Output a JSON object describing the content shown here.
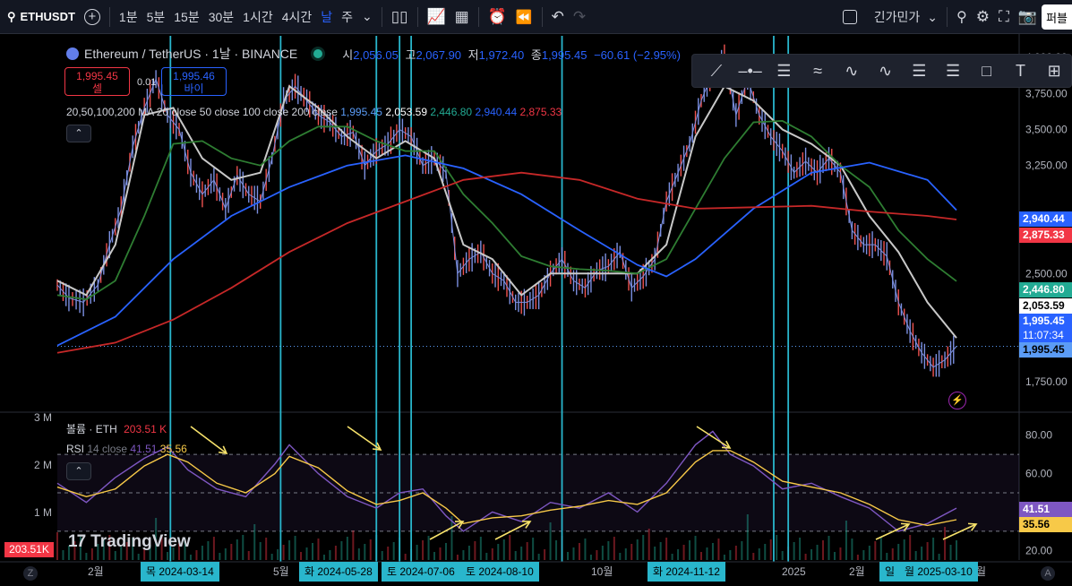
{
  "toolbar": {
    "symbol": "ETHUSDT",
    "intervals": [
      "1분",
      "5분",
      "15분",
      "30분",
      "1시간",
      "4시간",
      "날",
      "주"
    ],
    "active_interval": "날",
    "chart_type": "긴가민가"
  },
  "header": {
    "title": "Ethereum / TetherUS · 1날 · BINANCE",
    "ohlc": {
      "o_label": "시",
      "o": "2,056.05",
      "h_label": "고",
      "h": "2,067.90",
      "l_label": "저",
      "l": "1,972.40",
      "c_label": "종",
      "c": "1,995.45",
      "chg": "−60.61 (−2.95%)"
    },
    "sell_price": "1,995.45",
    "sell_label": "셀",
    "buy_price": "1,995.46",
    "buy_label": "바이",
    "spread": "0.01",
    "ma_name": "20,50,100,200 MA",
    "ma_params": "20 close 50 close 100 close 200 close",
    "ma_values": [
      "1,995.45",
      "2,053.59",
      "2,446.80",
      "2,940.44",
      "2,875.33"
    ],
    "volume_name": "볼륨 · ETH",
    "volume_value": "203.51 K",
    "rsi_name": "RSI",
    "rsi_params": "14 close",
    "rsi_value": "41.51",
    "rsi_ma": "35.56"
  },
  "price_labels": [
    {
      "text": "2,940.44",
      "color": "#2962ff"
    },
    {
      "text": "2,875.33",
      "color": "#f23645"
    },
    {
      "text": "2,446.80",
      "color": "#22ab94"
    },
    {
      "text": "2,053.59",
      "color": "#ffffff"
    },
    {
      "text": "1,995.45",
      "color": "#2962ff"
    },
    {
      "text": "11:07:34",
      "color": "#2962ff"
    },
    {
      "text": "1,995.45",
      "color": "#5b9cf6"
    }
  ],
  "rsi_labels": [
    {
      "text": "41.51",
      "color": "#7e57c2"
    },
    {
      "text": "35.56",
      "color": "#f7c948"
    }
  ],
  "volume_label": "203.51K",
  "watermark": "TradingView",
  "date_badges": [
    "목 2024-03-14",
    "화 2024-05-28",
    "토 2024-07-06",
    "토 2024-08-10",
    "화 2024-11-12",
    "일",
    "월 2025-03-10"
  ],
  "chart_data": {
    "type": "line",
    "title": "Ethereum / TetherUS · 1날 · BINANCE",
    "x_ticks": [
      "2월",
      "5월",
      "10월",
      "2025",
      "2월",
      "월"
    ],
    "y_ticks": [
      "4,000.00",
      "3,750.00",
      "3,500.00",
      "3,250.00",
      "2,750.00",
      "2,500.00",
      "1,750.00"
    ],
    "y_range": [
      1550,
      4150
    ],
    "volume_ticks": [
      "3 M",
      "2 M",
      "1 M"
    ],
    "rsi_ticks": [
      "80.00",
      "60.00",
      "20.00"
    ],
    "rsi_range": [
      15,
      92
    ],
    "series": [
      {
        "name": "price",
        "color": "#7b8fe0",
        "points": [
          [
            0,
            2420
          ],
          [
            4,
            2330
          ],
          [
            9,
            2300
          ],
          [
            14,
            2420
          ],
          [
            18,
            2700
          ],
          [
            22,
            2950
          ],
          [
            26,
            3380
          ],
          [
            30,
            3650
          ],
          [
            34,
            3850
          ],
          [
            38,
            3600
          ],
          [
            42,
            3500
          ],
          [
            46,
            3200
          ],
          [
            50,
            3050
          ],
          [
            54,
            3150
          ],
          [
            58,
            2950
          ],
          [
            62,
            3180
          ],
          [
            66,
            3050
          ],
          [
            70,
            3000
          ],
          [
            74,
            3300
          ],
          [
            78,
            3700
          ],
          [
            82,
            3800
          ],
          [
            86,
            3700
          ],
          [
            90,
            3600
          ],
          [
            94,
            3550
          ],
          [
            98,
            3450
          ],
          [
            102,
            3480
          ],
          [
            106,
            3250
          ],
          [
            110,
            3350
          ],
          [
            114,
            3400
          ],
          [
            118,
            3500
          ],
          [
            122,
            3450
          ],
          [
            126,
            3250
          ],
          [
            130,
            3300
          ],
          [
            134,
            3200
          ],
          [
            138,
            2500
          ],
          [
            142,
            2600
          ],
          [
            146,
            2650
          ],
          [
            150,
            2500
          ],
          [
            154,
            2450
          ],
          [
            158,
            2300
          ],
          [
            162,
            2300
          ],
          [
            166,
            2350
          ],
          [
            170,
            2500
          ],
          [
            174,
            2600
          ],
          [
            178,
            2450
          ],
          [
            182,
            2400
          ],
          [
            186,
            2520
          ],
          [
            190,
            2550
          ],
          [
            194,
            2650
          ],
          [
            198,
            2400
          ],
          [
            202,
            2480
          ],
          [
            206,
            2600
          ],
          [
            210,
            3000
          ],
          [
            214,
            3200
          ],
          [
            218,
            3400
          ],
          [
            222,
            3700
          ],
          [
            226,
            3900
          ],
          [
            230,
            4000
          ],
          [
            234,
            3600
          ],
          [
            238,
            3850
          ],
          [
            242,
            3600
          ],
          [
            246,
            3450
          ],
          [
            250,
            3350
          ],
          [
            254,
            3200
          ],
          [
            258,
            3280
          ],
          [
            262,
            3200
          ],
          [
            266,
            3300
          ],
          [
            270,
            3200
          ],
          [
            274,
            2800
          ],
          [
            278,
            2700
          ],
          [
            282,
            2700
          ],
          [
            286,
            2620
          ],
          [
            290,
            2300
          ],
          [
            294,
            2100
          ],
          [
            298,
            1950
          ],
          [
            302,
            1850
          ],
          [
            306,
            1900
          ],
          [
            310,
            1995
          ]
        ]
      },
      {
        "name": "MA 20",
        "color": "#c8c8c8",
        "points": [
          [
            0,
            2450
          ],
          [
            10,
            2350
          ],
          [
            20,
            2700
          ],
          [
            30,
            3600
          ],
          [
            40,
            3650
          ],
          [
            50,
            3300
          ],
          [
            60,
            3150
          ],
          [
            70,
            3200
          ],
          [
            80,
            3800
          ],
          [
            90,
            3650
          ],
          [
            100,
            3450
          ],
          [
            110,
            3300
          ],
          [
            120,
            3420
          ],
          [
            130,
            3300
          ],
          [
            140,
            2700
          ],
          [
            150,
            2600
          ],
          [
            160,
            2350
          ],
          [
            170,
            2500
          ],
          [
            180,
            2500
          ],
          [
            190,
            2500
          ],
          [
            200,
            2500
          ],
          [
            210,
            2700
          ],
          [
            220,
            3450
          ],
          [
            230,
            3800
          ],
          [
            240,
            3700
          ],
          [
            250,
            3500
          ],
          [
            260,
            3400
          ],
          [
            270,
            3250
          ],
          [
            280,
            2900
          ],
          [
            290,
            2650
          ],
          [
            300,
            2300
          ],
          [
            310,
            2053
          ]
        ]
      },
      {
        "name": "MA 50",
        "color": "#2e7d32",
        "points": [
          [
            0,
            2350
          ],
          [
            10,
            2320
          ],
          [
            20,
            2450
          ],
          [
            30,
            2900
          ],
          [
            40,
            3400
          ],
          [
            50,
            3420
          ],
          [
            60,
            3300
          ],
          [
            70,
            3250
          ],
          [
            80,
            3420
          ],
          [
            90,
            3520
          ],
          [
            100,
            3520
          ],
          [
            110,
            3420
          ],
          [
            120,
            3350
          ],
          [
            130,
            3350
          ],
          [
            140,
            3050
          ],
          [
            150,
            2850
          ],
          [
            160,
            2620
          ],
          [
            170,
            2550
          ],
          [
            180,
            2530
          ],
          [
            190,
            2520
          ],
          [
            200,
            2500
          ],
          [
            210,
            2600
          ],
          [
            220,
            2950
          ],
          [
            230,
            3300
          ],
          [
            240,
            3550
          ],
          [
            250,
            3560
          ],
          [
            260,
            3450
          ],
          [
            270,
            3250
          ],
          [
            280,
            3100
          ],
          [
            290,
            2800
          ],
          [
            300,
            2600
          ],
          [
            310,
            2447
          ]
        ]
      },
      {
        "name": "MA 100",
        "color": "#2962ff",
        "points": [
          [
            0,
            2000
          ],
          [
            20,
            2200
          ],
          [
            40,
            2600
          ],
          [
            60,
            2900
          ],
          [
            80,
            3100
          ],
          [
            100,
            3250
          ],
          [
            120,
            3320
          ],
          [
            140,
            3230
          ],
          [
            160,
            3050
          ],
          [
            180,
            2800
          ],
          [
            200,
            2560
          ],
          [
            210,
            2480
          ],
          [
            220,
            2600
          ],
          [
            240,
            2950
          ],
          [
            260,
            3200
          ],
          [
            280,
            3270
          ],
          [
            300,
            3150
          ],
          [
            310,
            2940
          ]
        ]
      },
      {
        "name": "MA 200",
        "color": "#c62828",
        "points": [
          [
            0,
            1950
          ],
          [
            20,
            2020
          ],
          [
            40,
            2180
          ],
          [
            60,
            2400
          ],
          [
            80,
            2650
          ],
          [
            100,
            2850
          ],
          [
            120,
            3000
          ],
          [
            140,
            3150
          ],
          [
            160,
            3200
          ],
          [
            180,
            3150
          ],
          [
            200,
            3020
          ],
          [
            220,
            2950
          ],
          [
            240,
            2960
          ],
          [
            260,
            2970
          ],
          [
            280,
            2930
          ],
          [
            300,
            2900
          ],
          [
            310,
            2875
          ]
        ]
      }
    ],
    "rsi_series": [
      {
        "name": "RSI",
        "color": "#7e57c2",
        "points": [
          [
            0,
            55
          ],
          [
            10,
            45
          ],
          [
            20,
            58
          ],
          [
            30,
            68
          ],
          [
            38,
            74
          ],
          [
            45,
            62
          ],
          [
            55,
            52
          ],
          [
            65,
            48
          ],
          [
            75,
            65
          ],
          [
            80,
            75
          ],
          [
            90,
            60
          ],
          [
            100,
            48
          ],
          [
            110,
            42
          ],
          [
            118,
            50
          ],
          [
            126,
            52
          ],
          [
            134,
            38
          ],
          [
            140,
            30
          ],
          [
            150,
            40
          ],
          [
            160,
            35
          ],
          [
            170,
            45
          ],
          [
            180,
            42
          ],
          [
            190,
            50
          ],
          [
            200,
            40
          ],
          [
            210,
            55
          ],
          [
            220,
            75
          ],
          [
            226,
            82
          ],
          [
            232,
            70
          ],
          [
            240,
            64
          ],
          [
            250,
            52
          ],
          [
            260,
            55
          ],
          [
            270,
            48
          ],
          [
            280,
            42
          ],
          [
            290,
            30
          ],
          [
            300,
            34
          ],
          [
            310,
            42
          ]
        ]
      },
      {
        "name": "RSI MA",
        "color": "#f7c948",
        "points": [
          [
            0,
            53
          ],
          [
            10,
            48
          ],
          [
            20,
            52
          ],
          [
            30,
            64
          ],
          [
            38,
            70
          ],
          [
            45,
            66
          ],
          [
            55,
            55
          ],
          [
            65,
            50
          ],
          [
            75,
            60
          ],
          [
            80,
            69
          ],
          [
            90,
            63
          ],
          [
            100,
            51
          ],
          [
            110,
            44
          ],
          [
            118,
            46
          ],
          [
            126,
            50
          ],
          [
            134,
            42
          ],
          [
            140,
            34
          ],
          [
            150,
            37
          ],
          [
            160,
            38
          ],
          [
            170,
            41
          ],
          [
            180,
            43
          ],
          [
            190,
            46
          ],
          [
            200,
            44
          ],
          [
            210,
            50
          ],
          [
            220,
            66
          ],
          [
            226,
            72
          ],
          [
            232,
            72
          ],
          [
            240,
            66
          ],
          [
            250,
            56
          ],
          [
            260,
            53
          ],
          [
            270,
            50
          ],
          [
            280,
            44
          ],
          [
            290,
            36
          ],
          [
            300,
            33
          ],
          [
            310,
            36
          ]
        ]
      }
    ],
    "vertical_markers": [
      39,
      77,
      110,
      118,
      122,
      174,
      247,
      252
    ],
    "rsi_bands": [
      70,
      50,
      30
    ]
  }
}
